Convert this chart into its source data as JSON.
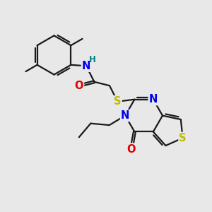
{
  "background_color": "#e8e8e8",
  "bond_color": "#1a1a1a",
  "atom_colors": {
    "N": "#0000ee",
    "O": "#dd0000",
    "S_link": "#bbbb00",
    "S_thio": "#bbbb00",
    "H": "#008080",
    "C": "#1a1a1a"
  },
  "lw": 1.6,
  "fs": 10.5,
  "fsh": 8.5
}
